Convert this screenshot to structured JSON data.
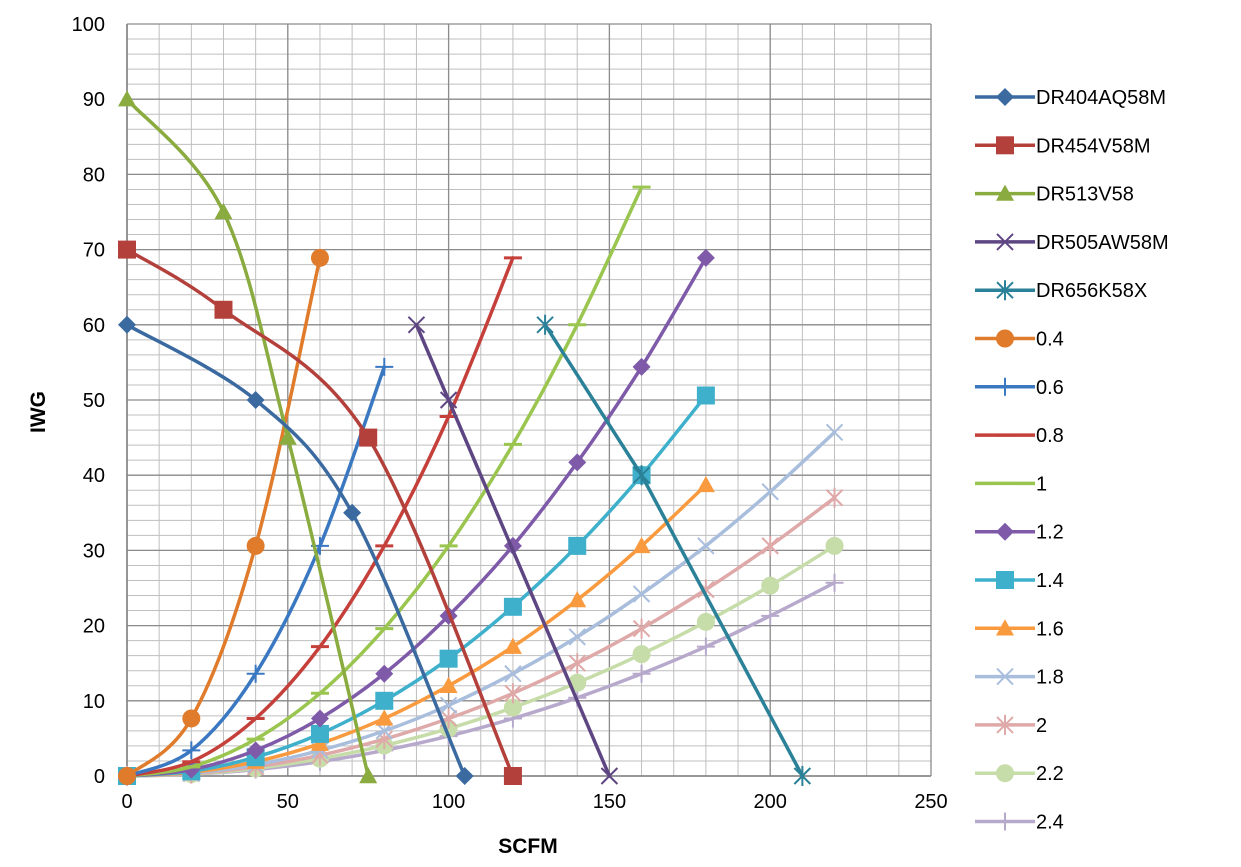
{
  "chart_data": {
    "type": "line",
    "title": "",
    "xlabel": "SCFM",
    "ylabel": "IWG",
    "xlim": [
      0,
      250
    ],
    "ylim": [
      0,
      100
    ],
    "x_ticks": [
      0,
      50,
      100,
      150,
      200,
      250
    ],
    "y_ticks": [
      0,
      10,
      20,
      30,
      40,
      50,
      60,
      70,
      80,
      90,
      100
    ],
    "grid": "major and minor",
    "legend_position": "right",
    "series": [
      {
        "name": "DR404AQ58M",
        "color": "#3b6aa0",
        "marker": "diamond",
        "smooth": true,
        "points": [
          [
            0,
            60
          ],
          [
            40,
            50
          ],
          [
            70,
            35
          ],
          [
            105,
            0
          ]
        ]
      },
      {
        "name": "DR454V58M",
        "color": "#b3403b",
        "marker": "square",
        "smooth": true,
        "points": [
          [
            0,
            70
          ],
          [
            30,
            62
          ],
          [
            75,
            45
          ],
          [
            120,
            0
          ]
        ]
      },
      {
        "name": "DR513V58",
        "color": "#8aab3f",
        "marker": "triangle",
        "smooth": true,
        "points": [
          [
            0,
            90
          ],
          [
            30,
            75
          ],
          [
            50,
            45
          ],
          [
            75,
            0
          ]
        ]
      },
      {
        "name": "DR505AW58M",
        "color": "#5e4683",
        "marker": "x",
        "smooth": false,
        "points": [
          [
            90,
            60
          ],
          [
            100,
            50
          ],
          [
            150,
            0
          ]
        ]
      },
      {
        "name": "DR656K58X",
        "color": "#2a8198",
        "marker": "star",
        "smooth": false,
        "points": [
          [
            130,
            60
          ],
          [
            160,
            40
          ],
          [
            210,
            0
          ]
        ]
      },
      {
        "name": "0.4",
        "color": "#e07b2b",
        "marker": "circle",
        "smooth": true,
        "points": [
          [
            0,
            0
          ],
          [
            20,
            7.65
          ],
          [
            40,
            30.6
          ],
          [
            60,
            68.9
          ]
        ]
      },
      {
        "name": "0.6",
        "color": "#3b78c2",
        "marker": "plus",
        "smooth": true,
        "points": [
          [
            0,
            0
          ],
          [
            20,
            3.4
          ],
          [
            40,
            13.6
          ],
          [
            60,
            30.6
          ],
          [
            80,
            54.4
          ]
        ]
      },
      {
        "name": "0.8",
        "color": "#c5403b",
        "marker": "dash",
        "smooth": true,
        "points": [
          [
            0,
            0
          ],
          [
            20,
            1.9
          ],
          [
            40,
            7.65
          ],
          [
            60,
            17.2
          ],
          [
            80,
            30.6
          ],
          [
            100,
            47.8
          ],
          [
            120,
            68.9
          ]
        ]
      },
      {
        "name": "1",
        "color": "#9ac54f",
        "marker": "dash",
        "smooth": true,
        "points": [
          [
            0,
            0
          ],
          [
            20,
            1.22
          ],
          [
            40,
            4.9
          ],
          [
            60,
            11
          ],
          [
            80,
            19.6
          ],
          [
            100,
            30.6
          ],
          [
            120,
            44.1
          ],
          [
            140,
            60
          ],
          [
            160,
            78.3
          ]
        ]
      },
      {
        "name": "1.2",
        "color": "#7e5aa9",
        "marker": "diamond",
        "smooth": true,
        "points": [
          [
            0,
            0
          ],
          [
            20,
            0.85
          ],
          [
            40,
            3.4
          ],
          [
            60,
            7.65
          ],
          [
            80,
            13.6
          ],
          [
            100,
            21.3
          ],
          [
            120,
            30.6
          ],
          [
            140,
            41.7
          ],
          [
            160,
            54.4
          ],
          [
            180,
            68.9
          ]
        ]
      },
      {
        "name": "1.4",
        "color": "#3fb0cc",
        "marker": "square",
        "smooth": true,
        "points": [
          [
            0,
            0
          ],
          [
            20,
            0.62
          ],
          [
            40,
            2.5
          ],
          [
            60,
            5.6
          ],
          [
            80,
            10
          ],
          [
            100,
            15.6
          ],
          [
            120,
            22.5
          ],
          [
            140,
            30.6
          ],
          [
            160,
            40
          ],
          [
            180,
            50.6
          ]
        ]
      },
      {
        "name": "1.6",
        "color": "#f99a3e",
        "marker": "triangle",
        "smooth": true,
        "points": [
          [
            0,
            0
          ],
          [
            20,
            0.48
          ],
          [
            40,
            1.9
          ],
          [
            60,
            4.3
          ],
          [
            80,
            7.65
          ],
          [
            100,
            12
          ],
          [
            120,
            17.2
          ],
          [
            140,
            23.4
          ],
          [
            160,
            30.6
          ],
          [
            180,
            38.7
          ]
        ]
      },
      {
        "name": "1.8",
        "color": "#a9bedd",
        "marker": "x",
        "smooth": true,
        "points": [
          [
            0,
            0
          ],
          [
            20,
            0.38
          ],
          [
            40,
            1.5
          ],
          [
            60,
            3.4
          ],
          [
            80,
            6
          ],
          [
            100,
            9.4
          ],
          [
            120,
            13.6
          ],
          [
            140,
            18.5
          ],
          [
            160,
            24.2
          ],
          [
            180,
            30.6
          ],
          [
            200,
            37.8
          ],
          [
            220,
            45.7
          ]
        ]
      },
      {
        "name": "2",
        "color": "#dea9a8",
        "marker": "star",
        "smooth": true,
        "points": [
          [
            0,
            0
          ],
          [
            20,
            0.31
          ],
          [
            40,
            1.22
          ],
          [
            60,
            2.75
          ],
          [
            80,
            4.9
          ],
          [
            100,
            7.65
          ],
          [
            120,
            11
          ],
          [
            140,
            15
          ],
          [
            160,
            19.6
          ],
          [
            180,
            24.8
          ],
          [
            200,
            30.6
          ],
          [
            220,
            37
          ]
        ]
      },
      {
        "name": "2.2",
        "color": "#c6dca9",
        "marker": "circle",
        "smooth": true,
        "points": [
          [
            0,
            0
          ],
          [
            20,
            0.25
          ],
          [
            40,
            1.01
          ],
          [
            60,
            2.3
          ],
          [
            80,
            4.05
          ],
          [
            100,
            6.3
          ],
          [
            120,
            9.1
          ],
          [
            140,
            12.4
          ],
          [
            160,
            16.2
          ],
          [
            180,
            20.5
          ],
          [
            200,
            25.3
          ],
          [
            220,
            30.6
          ]
        ]
      },
      {
        "name": "2.4",
        "color": "#b7a9cc",
        "marker": "plus",
        "smooth": true,
        "points": [
          [
            0,
            0
          ],
          [
            20,
            0.21
          ],
          [
            40,
            0.85
          ],
          [
            60,
            1.9
          ],
          [
            80,
            3.4
          ],
          [
            100,
            5.3
          ],
          [
            120,
            7.65
          ],
          [
            140,
            10.4
          ],
          [
            160,
            13.6
          ],
          [
            180,
            17.2
          ],
          [
            200,
            21.3
          ],
          [
            220,
            25.7
          ]
        ]
      }
    ]
  }
}
